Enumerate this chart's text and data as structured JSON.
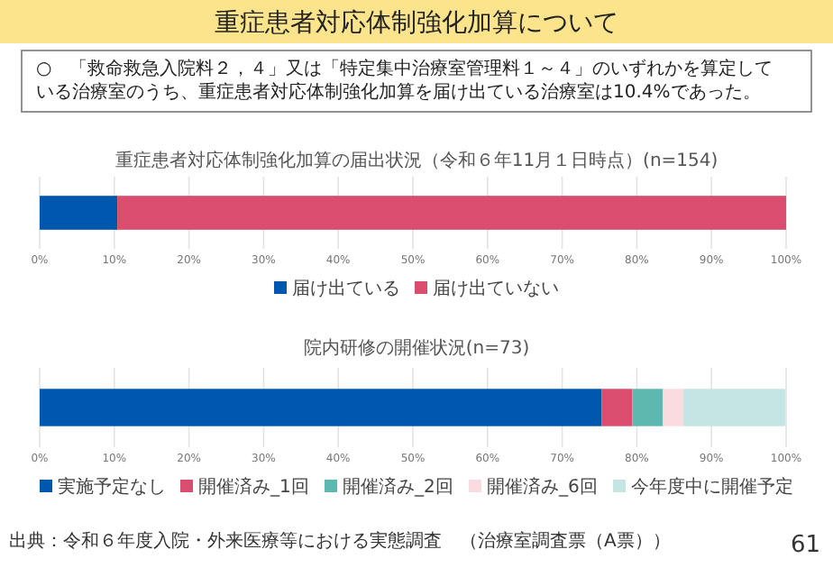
{
  "chart_data": [
    {
      "type": "bar",
      "orientation": "horizontal",
      "stacked": true,
      "title": "重症患者対応体制強化加算の届出状況（令和６年11月１日時点）(n=154)",
      "categories": [
        null
      ],
      "series": [
        {
          "name": "届け出ている",
          "color": "#0058ae",
          "values": [
            10.4
          ]
        },
        {
          "name": "届け出ていない",
          "color": "#d94e6e",
          "values": [
            89.6
          ]
        }
      ],
      "xlim": [
        0,
        100
      ],
      "xticks": [
        {
          "value": 0,
          "label": "0%"
        },
        {
          "value": 10,
          "label": "10%"
        },
        {
          "value": 20,
          "label": "20%"
        },
        {
          "value": 30,
          "label": "30%"
        },
        {
          "value": 40,
          "label": "40%"
        },
        {
          "value": 50,
          "label": "50%"
        },
        {
          "value": 60,
          "label": "60%"
        },
        {
          "value": 70,
          "label": "70%"
        },
        {
          "value": 80,
          "label": "80%"
        },
        {
          "value": 90,
          "label": "90%"
        },
        {
          "value": 100,
          "label": "100%"
        }
      ],
      "grid": "x",
      "legend": "bottom",
      "annotations": [
        "重症患者対応体制強化加算について",
        "○　「救命救急入院料２，４」又は「特定集中治療室管理料１～４」のいずれかを算定している治療室のうち、重症患者対応体制強化加算を届け出ている治療室は10.4%であった。"
      ]
    },
    {
      "type": "bar",
      "orientation": "horizontal",
      "stacked": true,
      "title": "院内研修の開催状況(n=73)",
      "categories": [
        null
      ],
      "series": [
        {
          "name": "実施予定なし",
          "color": "#0058ae",
          "values": [
            75.3
          ]
        },
        {
          "name": "開催済み_1回",
          "color": "#d94e6e",
          "values": [
            4.1
          ]
        },
        {
          "name": "開催済み_2回",
          "color": "#5fb8b0",
          "values": [
            4.1
          ]
        },
        {
          "name": "開催済み_6回",
          "color": "#fadbe0",
          "values": [
            2.7
          ]
        },
        {
          "name": "今年度中に開催予定",
          "color": "#c5e4e4",
          "values": [
            13.7
          ]
        }
      ],
      "xlim": [
        0,
        100
      ],
      "xticks": [
        {
          "value": 0,
          "label": "0%"
        },
        {
          "value": 10,
          "label": "10%"
        },
        {
          "value": 20,
          "label": "20%"
        },
        {
          "value": 30,
          "label": "30%"
        },
        {
          "value": 40,
          "label": "40%"
        },
        {
          "value": 50,
          "label": "50%"
        },
        {
          "value": 60,
          "label": "60%"
        },
        {
          "value": 70,
          "label": "70%"
        },
        {
          "value": 80,
          "label": "80%"
        },
        {
          "value": 90,
          "label": "90%"
        },
        {
          "value": 100,
          "label": "100%"
        }
      ],
      "grid": "x",
      "legend": "bottom",
      "annotations": [
        "出典：令和６年度入院・外来医療等における実態調査　（治療室調査票（A票））",
        "61"
      ]
    }
  ]
}
